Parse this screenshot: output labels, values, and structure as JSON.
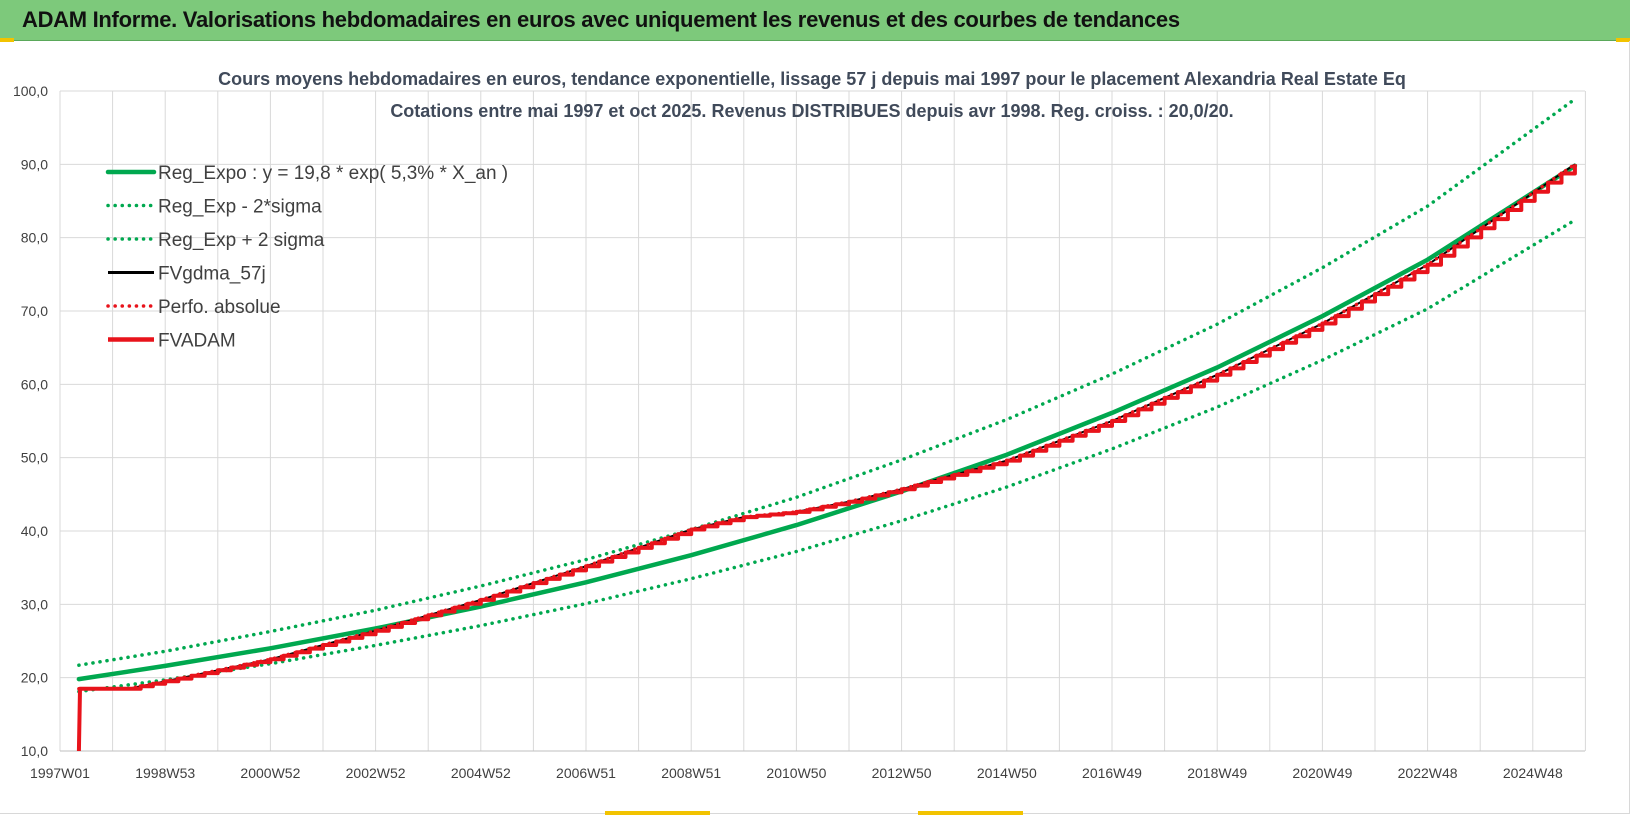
{
  "header": {
    "title": "ADAM Informe. Valorisations hebdomadaires en euros avec uniquement les revenus et des courbes de tendances"
  },
  "colors": {
    "header_bg": "#7dc97b",
    "trend_green": "#00a84f",
    "adam_red": "#e8131b",
    "black": "#000000",
    "grid": "#d9d9d9",
    "title_text": "#404a5a"
  },
  "chart_data": {
    "type": "line",
    "title_line1": "Cours moyens hebdomadaires en euros, tendance exponentielle, lissage 57 j depuis mai 1997 pour le placement Alexandria Real Estate Eq",
    "title_line2": "Cotations entre mai 1997 et oct 2025. Revenus DISTRIBUES depuis avr 1998. Reg. croiss. : 20,0/20.",
    "xlabel": "",
    "ylabel": "",
    "ylim": [
      10,
      100
    ],
    "xlim": [
      1997.36,
      2025.8
    ],
    "grid": true,
    "legend_position": "top-left",
    "y_ticks": [
      "10,0",
      "20,0",
      "30,0",
      "40,0",
      "50,0",
      "60,0",
      "70,0",
      "80,0",
      "90,0",
      "100,0"
    ],
    "x_ticks": [
      {
        "label": "1997W01",
        "year": 1997.0
      },
      {
        "label": "1998W53",
        "year": 1999.0
      },
      {
        "label": "2000W52",
        "year": 2001.0
      },
      {
        "label": "2002W52",
        "year": 2003.0
      },
      {
        "label": "2004W52",
        "year": 2005.0
      },
      {
        "label": "2006W51",
        "year": 2007.0
      },
      {
        "label": "2008W51",
        "year": 2009.0
      },
      {
        "label": "2010W50",
        "year": 2011.0
      },
      {
        "label": "2012W50",
        "year": 2013.0
      },
      {
        "label": "2014W50",
        "year": 2015.0
      },
      {
        "label": "2016W49",
        "year": 2017.0
      },
      {
        "label": "2018W49",
        "year": 2019.0
      },
      {
        "label": "2020W49",
        "year": 2021.0
      },
      {
        "label": "2022W48",
        "year": 2023.0
      },
      {
        "label": "2024W48",
        "year": 2025.0
      }
    ],
    "series": [
      {
        "name": "Reg_Expo : y = 19,8 * exp( 5,3% *  X_an )",
        "style": "solid-thick",
        "color": "#00a84f",
        "points": [
          [
            1997.36,
            19.8
          ],
          [
            1999,
            21.6
          ],
          [
            2001,
            24.0
          ],
          [
            2003,
            26.7
          ],
          [
            2005,
            29.7
          ],
          [
            2007,
            33.0
          ],
          [
            2009,
            36.7
          ],
          [
            2011,
            40.8
          ],
          [
            2013,
            45.4
          ],
          [
            2015,
            50.4
          ],
          [
            2017,
            56.1
          ],
          [
            2019,
            62.3
          ],
          [
            2021,
            69.3
          ],
          [
            2023,
            77.0
          ],
          [
            2025.8,
            89.8
          ]
        ]
      },
      {
        "name": "Reg_Exp - 2*sigma",
        "style": "dotted",
        "color": "#00a84f",
        "points": [
          [
            1997.36,
            18.1
          ],
          [
            1999,
            19.7
          ],
          [
            2001,
            21.9
          ],
          [
            2003,
            24.4
          ],
          [
            2005,
            27.1
          ],
          [
            2007,
            30.1
          ],
          [
            2009,
            33.5
          ],
          [
            2011,
            37.2
          ],
          [
            2013,
            41.4
          ],
          [
            2015,
            46.0
          ],
          [
            2017,
            51.2
          ],
          [
            2019,
            56.9
          ],
          [
            2021,
            63.3
          ],
          [
            2023,
            70.3
          ],
          [
            2025.8,
            82.4
          ]
        ]
      },
      {
        "name": "Reg_Exp + 2 sigma",
        "style": "dotted",
        "color": "#00a84f",
        "points": [
          [
            1997.36,
            21.7
          ],
          [
            1999,
            23.6
          ],
          [
            2001,
            26.3
          ],
          [
            2003,
            29.2
          ],
          [
            2005,
            32.5
          ],
          [
            2007,
            36.1
          ],
          [
            2009,
            40.2
          ],
          [
            2011,
            44.6
          ],
          [
            2013,
            49.7
          ],
          [
            2015,
            55.2
          ],
          [
            2017,
            61.4
          ],
          [
            2019,
            68.2
          ],
          [
            2021,
            75.9
          ],
          [
            2023,
            84.3
          ],
          [
            2025.8,
            98.9
          ]
        ]
      },
      {
        "name": "FVgdma_57j",
        "style": "solid",
        "color": "#000000",
        "points": [
          [
            1997.36,
            10.0
          ],
          [
            1997.38,
            18.5
          ],
          [
            1998.3,
            18.5
          ],
          [
            1999,
            19.5
          ],
          [
            2001,
            22.5
          ],
          [
            2003,
            26.4
          ],
          [
            2005,
            30.6
          ],
          [
            2007,
            35.2
          ],
          [
            2009,
            40.2
          ],
          [
            2010,
            41.9
          ],
          [
            2011,
            42.6
          ],
          [
            2012,
            44.0
          ],
          [
            2013,
            45.7
          ],
          [
            2015,
            49.6
          ],
          [
            2017,
            55.0
          ],
          [
            2019,
            61.3
          ],
          [
            2021,
            68.3
          ],
          [
            2023,
            76.3
          ],
          [
            2025.8,
            90.0
          ]
        ]
      },
      {
        "name": "Perfo. absolue",
        "style": "dotted",
        "color": "#e8131b",
        "points": [
          [
            1997.36,
            18.5
          ],
          [
            1998.3,
            18.5
          ],
          [
            1999,
            19.5
          ],
          [
            2001,
            22.5
          ],
          [
            2003,
            26.4
          ],
          [
            2005,
            30.6
          ],
          [
            2007,
            35.2
          ],
          [
            2009,
            40.2
          ],
          [
            2010,
            41.9
          ],
          [
            2011,
            42.6
          ],
          [
            2012,
            44.0
          ],
          [
            2013,
            45.7
          ],
          [
            2015,
            49.6
          ],
          [
            2017,
            55.0
          ],
          [
            2019,
            61.3
          ],
          [
            2021,
            68.3
          ],
          [
            2023,
            76.3
          ],
          [
            2025.8,
            90.0
          ]
        ]
      },
      {
        "name": "FVADAM",
        "style": "solid-thick-stepped",
        "color": "#e8131b",
        "points": [
          [
            1997.36,
            10.0
          ],
          [
            1997.38,
            18.5
          ],
          [
            1998.3,
            18.5
          ],
          [
            1999,
            19.5
          ],
          [
            2001,
            22.5
          ],
          [
            2003,
            26.4
          ],
          [
            2005,
            30.6
          ],
          [
            2007,
            35.2
          ],
          [
            2009,
            40.2
          ],
          [
            2010,
            41.9
          ],
          [
            2011,
            42.6
          ],
          [
            2012,
            44.0
          ],
          [
            2013,
            45.7
          ],
          [
            2015,
            49.6
          ],
          [
            2017,
            55.0
          ],
          [
            2019,
            61.3
          ],
          [
            2021,
            68.3
          ],
          [
            2023,
            76.3
          ],
          [
            2025.8,
            90.0
          ]
        ]
      }
    ]
  }
}
